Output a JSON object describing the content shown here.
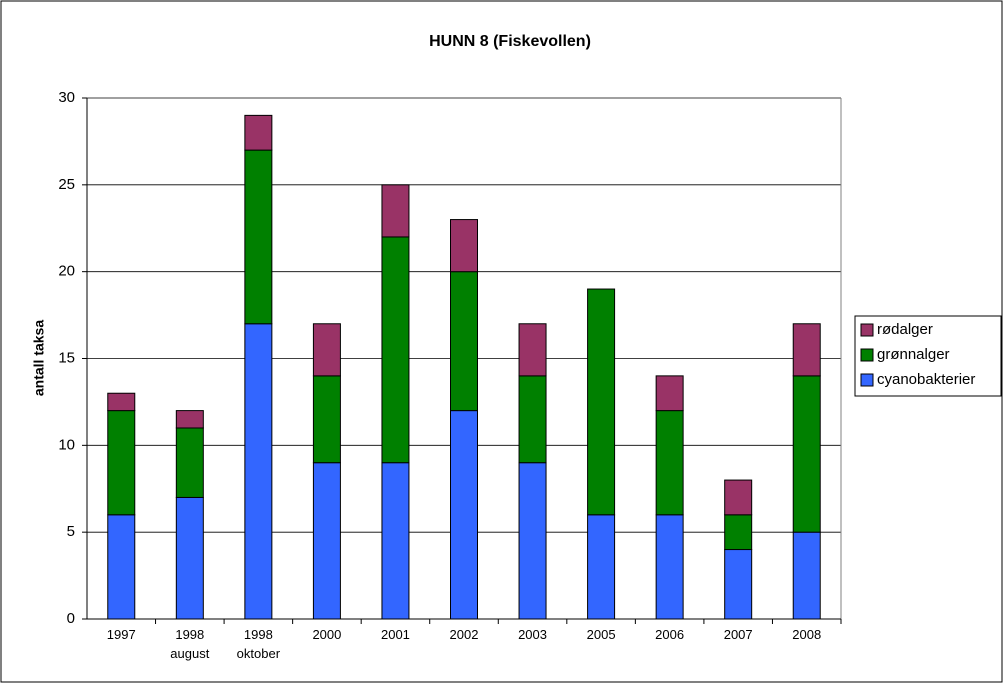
{
  "chart_data": {
    "type": "stacked-bar",
    "title": "HUNN 8 (Fiskevollen)",
    "y_label": "antall taksa",
    "categories": [
      "1997",
      "1998 august",
      "1998 oktober",
      "2000",
      "2001",
      "2002",
      "2003",
      "2005",
      "2006",
      "2007",
      "2008"
    ],
    "series": [
      {
        "name": "cyanobakterier",
        "color": "#3366ff",
        "values": [
          6,
          7,
          17,
          9,
          9,
          12,
          9,
          6,
          6,
          4,
          5
        ]
      },
      {
        "name": "grønnalger",
        "color": "#008000",
        "values": [
          6,
          4,
          10,
          5,
          13,
          8,
          5,
          13,
          6,
          2,
          9
        ]
      },
      {
        "name": "rødalger",
        "color": "#993366",
        "values": [
          1,
          1,
          2,
          3,
          3,
          3,
          3,
          0,
          2,
          2,
          3
        ]
      }
    ],
    "ylim": [
      0,
      30
    ],
    "yticks": [
      0,
      5,
      10,
      15,
      20,
      25,
      30
    ],
    "grid": true,
    "legend": "right"
  }
}
